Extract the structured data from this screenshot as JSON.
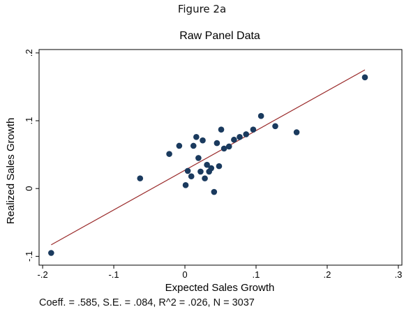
{
  "figure_label": "Figure 2a",
  "footnote": "Coeff. = .585, S.E. = .084, R^2 = .026, N = 3037",
  "colors": {
    "point": "#1a3a5e",
    "fit_line": "#9a2a2a",
    "axis": "#000000"
  },
  "chart_data": {
    "type": "scatter",
    "title": "Raw Panel Data",
    "xlabel": "Expected Sales Growth",
    "ylabel": "Realized Sales Growth",
    "xlim": [
      -0.2,
      0.3
    ],
    "ylim": [
      -0.1,
      0.2
    ],
    "xticks": [
      {
        "value": -0.2,
        "label": "-.2"
      },
      {
        "value": -0.1,
        "label": "-.1"
      },
      {
        "value": 0,
        "label": "0"
      },
      {
        "value": 0.1,
        "label": ".1"
      },
      {
        "value": 0.2,
        "label": ".2"
      },
      {
        "value": 0.3,
        "label": ".3"
      }
    ],
    "yticks": [
      {
        "value": -0.1,
        "label": "-.1"
      },
      {
        "value": 0,
        "label": "0"
      },
      {
        "value": 0.1,
        "label": ".1"
      },
      {
        "value": 0.2,
        "label": ".2"
      }
    ],
    "grid": false,
    "fit_line": {
      "x": [
        -0.188,
        0.253
      ],
      "y": [
        -0.083,
        0.175
      ]
    },
    "points": [
      {
        "x": -0.188,
        "y": -0.095
      },
      {
        "x": -0.063,
        "y": 0.015
      },
      {
        "x": -0.022,
        "y": 0.051
      },
      {
        "x": -0.008,
        "y": 0.063
      },
      {
        "x": 0.001,
        "y": 0.005
      },
      {
        "x": 0.004,
        "y": 0.026
      },
      {
        "x": 0.009,
        "y": 0.018
      },
      {
        "x": 0.012,
        "y": 0.063
      },
      {
        "x": 0.016,
        "y": 0.076
      },
      {
        "x": 0.019,
        "y": 0.045
      },
      {
        "x": 0.022,
        "y": 0.025
      },
      {
        "x": 0.025,
        "y": 0.071
      },
      {
        "x": 0.028,
        "y": 0.015
      },
      {
        "x": 0.031,
        "y": 0.035
      },
      {
        "x": 0.034,
        "y": 0.025
      },
      {
        "x": 0.037,
        "y": 0.03
      },
      {
        "x": 0.041,
        "y": -0.005
      },
      {
        "x": 0.045,
        "y": 0.067
      },
      {
        "x": 0.048,
        "y": 0.033
      },
      {
        "x": 0.051,
        "y": 0.087
      },
      {
        "x": 0.055,
        "y": 0.059
      },
      {
        "x": 0.062,
        "y": 0.062
      },
      {
        "x": 0.069,
        "y": 0.072
      },
      {
        "x": 0.077,
        "y": 0.076
      },
      {
        "x": 0.086,
        "y": 0.08
      },
      {
        "x": 0.096,
        "y": 0.087
      },
      {
        "x": 0.107,
        "y": 0.107
      },
      {
        "x": 0.127,
        "y": 0.092
      },
      {
        "x": 0.157,
        "y": 0.083
      },
      {
        "x": 0.253,
        "y": 0.164
      }
    ]
  }
}
